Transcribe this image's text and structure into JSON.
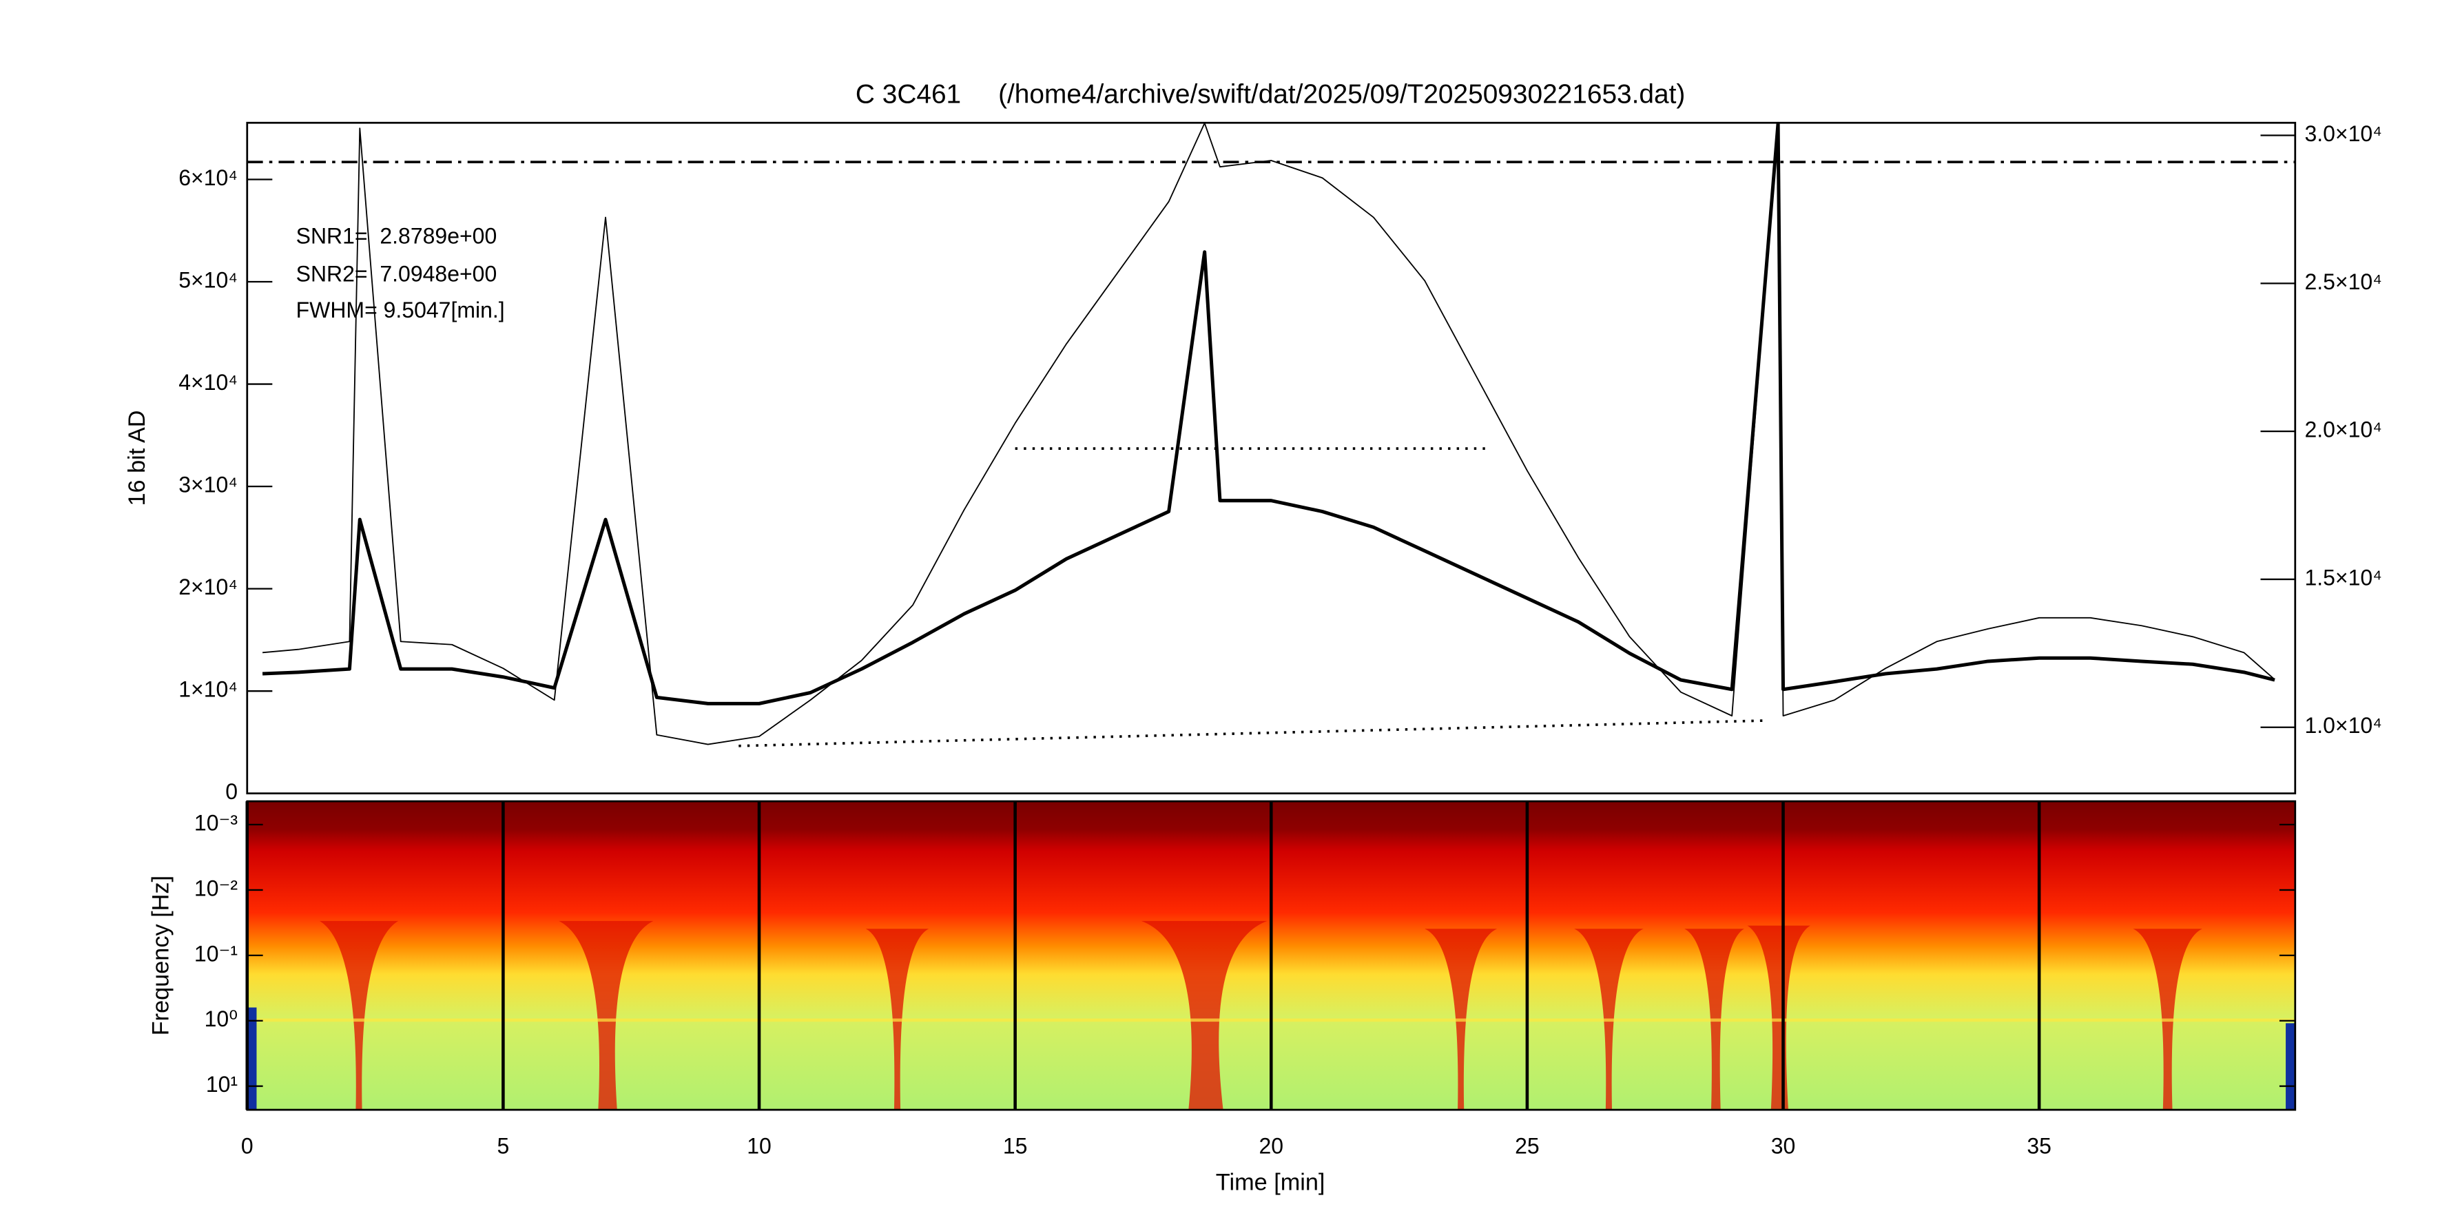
{
  "chart_data": [
    {
      "type": "line",
      "title": "C 3C461     (/home4/archive/swift/dat/2025/09/T20250930221653.dat)",
      "ylabel": "16 bit AD",
      "annotations": [
        "SNR1=  2.8789e+00",
        "SNR2=  7.0948e+00",
        "FWHM= 9.5047[min.]"
      ],
      "x": [
        0.3,
        1,
        2,
        2.2,
        3,
        4,
        5,
        6,
        7,
        8,
        9,
        10,
        11,
        12,
        13,
        14,
        15,
        16,
        17,
        18,
        18.7,
        19,
        20,
        21,
        22,
        23,
        24,
        25,
        26,
        27,
        28,
        29,
        29.9,
        30,
        31,
        32,
        33,
        34,
        35,
        36,
        37,
        38,
        39,
        39.6
      ],
      "xlim": [
        0,
        40
      ],
      "ylim": [
        0,
        65535
      ],
      "yticks": [
        0,
        {
          "value": 10000,
          "label": "1×10⁴"
        },
        {
          "value": 20000,
          "label": "2×10⁴"
        },
        {
          "value": 30000,
          "label": "3×10⁴"
        },
        {
          "value": 40000,
          "label": "4×10⁴"
        },
        {
          "value": 50000,
          "label": "5×10⁴"
        },
        {
          "value": 60000,
          "label": "6×10⁴"
        }
      ],
      "y2lim": [
        7766,
        30426
      ],
      "y2ticks": [
        {
          "value": 10000,
          "label": "1.0×10⁴"
        },
        {
          "value": 15000,
          "label": "1.5×10⁴"
        },
        {
          "value": 20000,
          "label": "2.0×10⁴"
        },
        {
          "value": 25000,
          "label": "2.5×10⁴"
        },
        {
          "value": 30000,
          "label": "3.0×10⁴"
        }
      ],
      "series": [
        {
          "color": "#000000",
          "values": [
            13760,
            14070,
            14840,
            65000,
            14840,
            14540,
            12220,
            9120,
            56290,
            5720,
            4790,
            5570,
            9120,
            12990,
            18400,
            27680,
            36180,
            43920,
            50870,
            57830,
            65500,
            61230,
            61850,
            60150,
            56290,
            50100,
            40820,
            31540,
            23040,
            15310,
            9900,
            7580,
            65500,
            7580,
            9120,
            12220,
            14840,
            16080,
            17160,
            17160,
            16390,
            15310,
            13760,
            11130
          ]
        },
        {
          "color": "#000000",
          "axis": "y2",
          "values": [
            11810,
            11860,
            11970,
            17020,
            11970,
            11970,
            11700,
            11330,
            17020,
            11010,
            10800,
            10800,
            11170,
            11970,
            12870,
            13830,
            14630,
            15690,
            16490,
            17290,
            26060,
            17660,
            17660,
            17290,
            16760,
            15960,
            15160,
            14360,
            13560,
            12500,
            11600,
            11280,
            30400,
            11280,
            11540,
            11810,
            11970,
            12230,
            12340,
            12340,
            12230,
            12130,
            11860,
            11600
          ]
        }
      ],
      "threshold": 61700,
      "fwhm_line": {
        "x": [
          15.0,
          24.3
        ],
        "y": [
          33700,
          33700
        ]
      },
      "baseline": {
        "x": [
          9.6,
          29.6
        ],
        "y": [
          4640,
          7110
        ]
      }
    },
    {
      "type": "spectrogram",
      "xlabel": "Time [min]",
      "ylabel": "Frequency [Hz]",
      "xlim": [
        0,
        40
      ],
      "xticks": [
        0,
        5,
        10,
        15,
        20,
        25,
        30,
        35
      ],
      "log": true,
      "inverted": true,
      "ylim": [
        0.00044,
        23
      ],
      "yticks": [
        {
          "value": 0.001,
          "label": "10⁻³"
        },
        {
          "value": 0.01,
          "label": "10⁻²"
        },
        {
          "value": 0.1,
          "label": "10⁻¹"
        },
        {
          "value": 1,
          "label": "10⁰"
        },
        {
          "value": 10,
          "label": "10¹"
        }
      ]
    }
  ]
}
